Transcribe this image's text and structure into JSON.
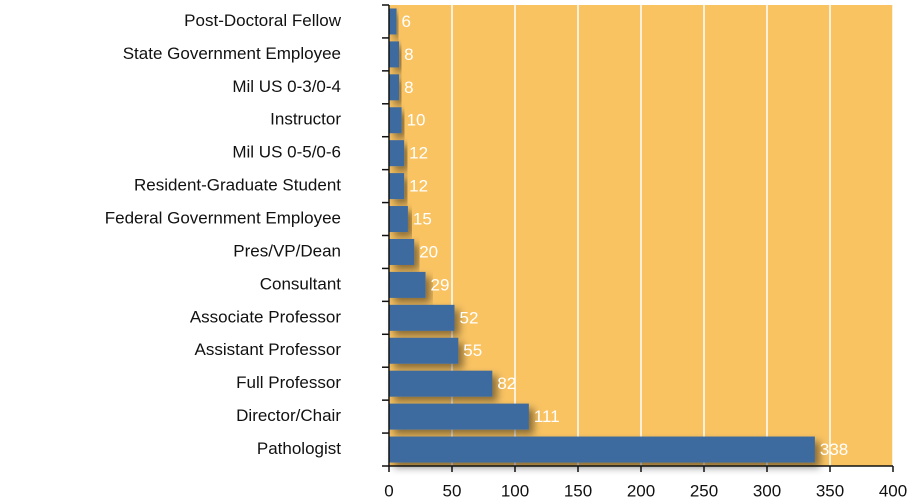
{
  "chart_data": {
    "type": "barh",
    "categories": [
      "Post-Doctoral Fellow",
      "State Government Employee",
      "Mil US 0-3/0-4",
      "Instructor",
      "Mil US 0-5/0-6",
      "Resident-Graduate Student",
      "Federal Government Employee",
      "Pres/VP/Dean",
      "Consultant",
      "Associate Professor",
      "Assistant Professor",
      "Full Professor",
      "Director/Chair",
      "Pathologist"
    ],
    "values": [
      6,
      8,
      8,
      10,
      12,
      12,
      15,
      20,
      29,
      52,
      55,
      82,
      111,
      338
    ],
    "color": "#3d6a9f",
    "background": "#f9c362",
    "xlim": [
      0,
      400
    ],
    "xticks": [
      0,
      50,
      100,
      150,
      200,
      250,
      300,
      350,
      400
    ],
    "grid": true
  }
}
